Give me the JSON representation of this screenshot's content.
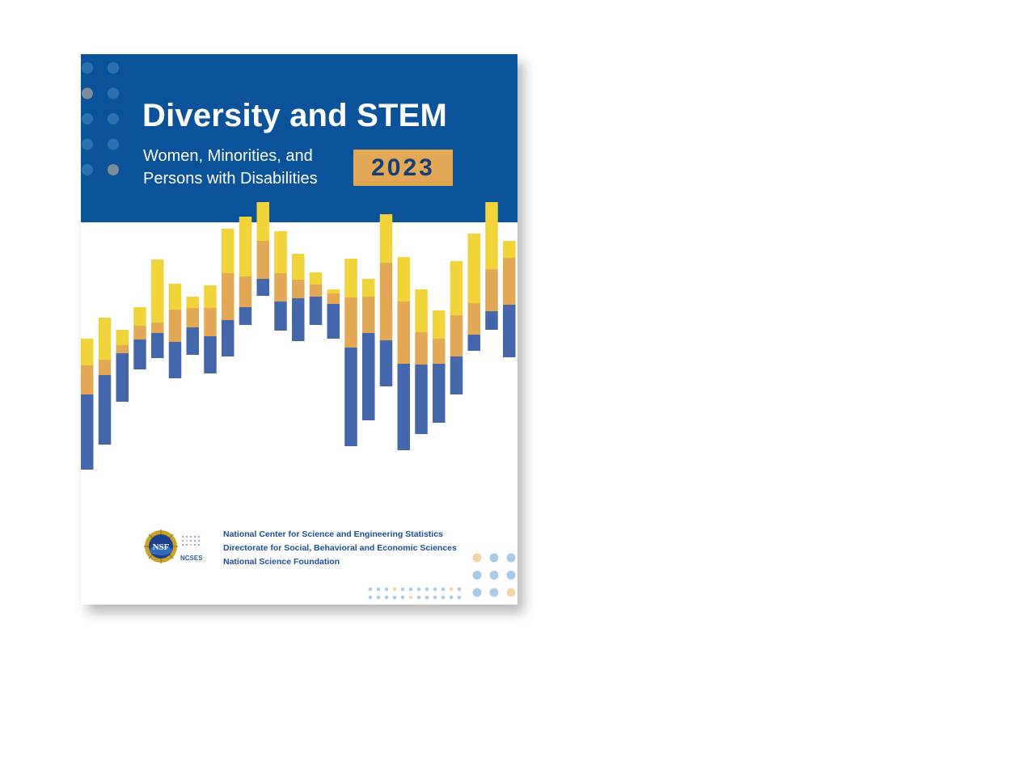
{
  "cover": {
    "title": "Diversity and STEM",
    "subtitle_line1": "Women, Minorities, and",
    "subtitle_line2": "Persons with Disabilities",
    "year": "2023",
    "logos": {
      "nsf": "NSF",
      "ncses": "NCSES"
    },
    "organizations": [
      "National Center for Science and Engineering Statistics",
      "Directorate for Social, Behavioral and Economic Sciences",
      "National Science Foundation"
    ]
  },
  "colors": {
    "banner_blue": "#0a5299",
    "bar_yellow": "#f1d33a",
    "bar_orange": "#e2a855",
    "bar_blue": "#4467ac",
    "year_badge_bg": "#e2a855",
    "year_badge_text": "#143d7a",
    "dot_blue_light": "#a9cbe9",
    "dot_peach": "#f2d4a6",
    "dot_banner": "#2d6fb3",
    "dot_banner_grey": "#7f8c99"
  },
  "decorative_bars": [
    {
      "yellow": 0.0,
      "orange": 0.35,
      "blue": 1.0
    }
  ]
}
